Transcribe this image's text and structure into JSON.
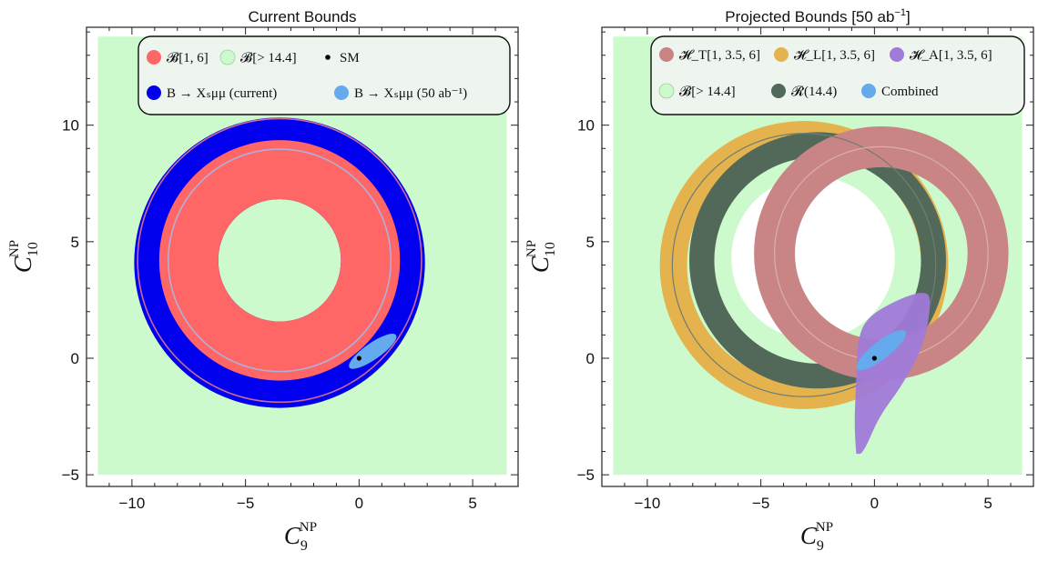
{
  "chart_data": [
    {
      "type": "contour",
      "title": "Current Bounds",
      "xlabel": "C9 NP",
      "ylabel": "C10 NP",
      "xlabel_main": "C",
      "xlabel_sub": "9",
      "xlabel_sup": "NP",
      "ylabel_main": "C",
      "ylabel_sub": "10",
      "ylabel_sup": "NP",
      "xlim": [
        -12,
        7
      ],
      "ylim": [
        -5.5,
        14.2
      ],
      "xticks": [
        -10,
        -5,
        0,
        5
      ],
      "yticks": [
        -5,
        0,
        5,
        10
      ],
      "grid": false,
      "legend_position": "top",
      "colors": {
        "background": "#ccfacc",
        "B16": "#ff6666",
        "B144": "#ccfacc",
        "current": "#0000ee",
        "proj50": "#66aaee",
        "sm": "#000000",
        "outline": "#b0b0d8"
      },
      "legend": [
        {
          "label": "𝓑[1, 6]",
          "color": "#ff6666"
        },
        {
          "label": "𝓑[> 14.4]",
          "color": "#ccfacc"
        },
        {
          "label": "SM",
          "color": "#000000",
          "marker": "dot"
        },
        {
          "label": "B → Xₛμμ (current)",
          "color": "#0000ee"
        },
        {
          "label": "B → Xₛμμ (50 ab⁻¹)",
          "color": "#66aaee"
        }
      ],
      "regions": {
        "background_box": {
          "x": [
            -11.5,
            6.5
          ],
          "y": [
            -5.0,
            13.8
          ]
        },
        "current_disk": {
          "center": [
            -3.5,
            4.1
          ],
          "radius": 6.4
        },
        "B16_annulus": {
          "center": [
            -3.5,
            4.2
          ],
          "r_outer": 5.3,
          "r_inner": 2.7
        },
        "outline_circles": [
          {
            "center": [
              -3.5,
              4.2
            ],
            "radius": 6.25
          },
          {
            "center": [
              -3.5,
              4.2
            ],
            "radius": 4.9
          }
        ],
        "proj50_ellipse": {
          "center": [
            0.6,
            0.3
          ],
          "rx": 1.25,
          "ry": 0.35,
          "angle_deg": 35
        },
        "sm_point": [
          0,
          0
        ]
      }
    },
    {
      "type": "contour",
      "title": "Projected Bounds [50 ab⁻¹]",
      "title_main": "Projected Bounds [50 ab",
      "title_sup": "−1",
      "title_end": "]",
      "xlabel": "C9 NP",
      "ylabel": "C10 NP",
      "xlabel_main": "C",
      "xlabel_sub": "9",
      "xlabel_sup": "NP",
      "ylabel_main": "C",
      "ylabel_sub": "10",
      "ylabel_sup": "NP",
      "xlim": [
        -12,
        7
      ],
      "ylim": [
        -5.5,
        14.2
      ],
      "xticks": [
        -10,
        -5,
        0,
        5
      ],
      "yticks": [
        -5,
        0,
        5,
        10
      ],
      "grid": false,
      "legend_position": "top",
      "colors": {
        "background": "#ccfacc",
        "HT": "#c98585",
        "HL": "#e5b34d",
        "HA": "#a07ad8",
        "B144": "#ccfacc",
        "R144": "#52695a",
        "combined": "#66aaee",
        "sm": "#000000"
      },
      "legend": [
        {
          "label": "𝓗_T[1, 3.5, 6]",
          "color": "#c98585"
        },
        {
          "label": "𝓗_L[1, 3.5, 6]",
          "color": "#e5b34d"
        },
        {
          "label": "𝓗_A[1, 3.5, 6]",
          "color": "#a07ad8"
        },
        {
          "label": "𝓑[> 14.4]",
          "color": "#ccfacc"
        },
        {
          "label": "𝓡(14.4)",
          "color": "#52695a"
        },
        {
          "label": "Combined",
          "color": "#66aaee"
        }
      ],
      "regions": {
        "background_box": {
          "x": [
            -11.5,
            6.5
          ],
          "y": [
            -5.0,
            13.8
          ]
        },
        "HL_annulus": {
          "center": [
            -3.1,
            4.0
          ],
          "r_outer": 6.35,
          "r_inner": 5.15
        },
        "R144_annulus": {
          "center": [
            -2.5,
            4.2
          ],
          "r_outer": 5.65,
          "r_inner": 4.55
        },
        "HT_annulus": {
          "center": [
            0.3,
            4.5
          ],
          "r_outer": 5.6,
          "r_inner": 3.8
        },
        "white_hole": {
          "center": [
            -2.7,
            4.3
          ],
          "radius": 3.6
        },
        "HA_blob": [
          [
            -0.8,
            -4.1
          ],
          [
            -0.5,
            -4.1
          ],
          [
            0.2,
            -2.5
          ],
          [
            1.2,
            -1.2
          ],
          [
            2.2,
            0.6
          ],
          [
            2.5,
            2.4
          ],
          [
            2.3,
            2.9
          ],
          [
            1.2,
            2.6
          ],
          [
            -0.3,
            1.8
          ],
          [
            -0.75,
            0.8
          ],
          [
            -0.8,
            -1.0
          ],
          [
            -0.9,
            -3.0
          ]
        ],
        "combined_ellipse": {
          "center": [
            0.3,
            0.35
          ],
          "rx": 1.35,
          "ry": 0.38,
          "angle_deg": 38
        },
        "sm_point": [
          0,
          0
        ]
      }
    }
  ]
}
